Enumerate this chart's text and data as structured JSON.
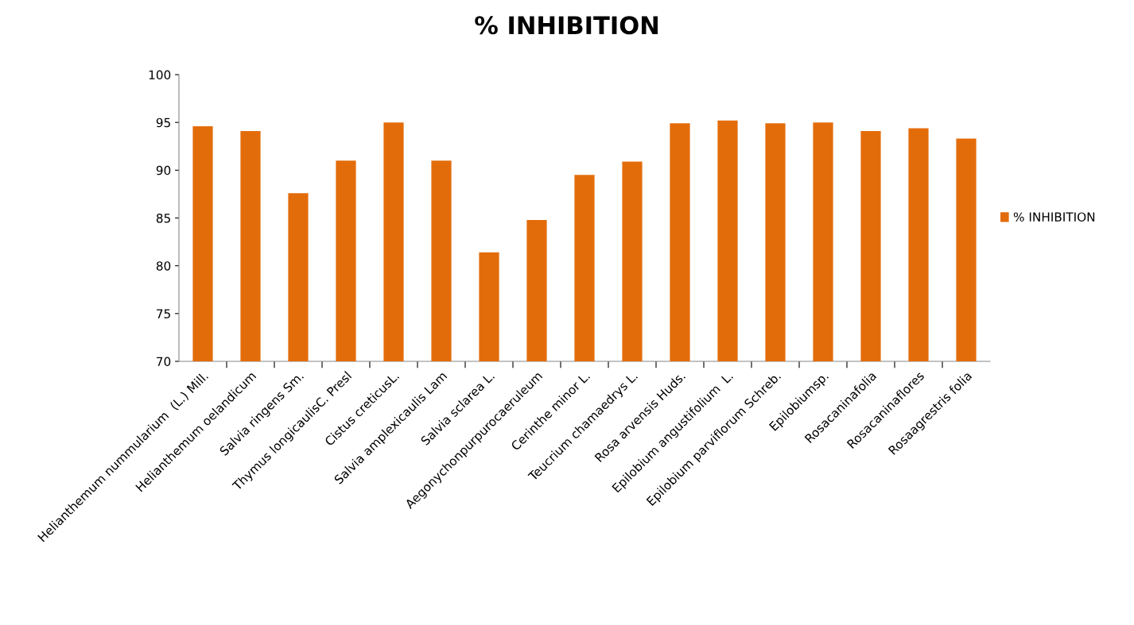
{
  "chart_data": {
    "type": "bar",
    "title": "% INHIBITION",
    "categories": [
      "Helianthemum nummularium  (L.) Mill.",
      "Helianthemum oelandicum",
      "Salvia ringens Sm.",
      "Thymus longicaulisC. Presl",
      "Cistus creticusL.",
      "Salvia amplexicaulis Lam",
      "Salvia sclarea L.",
      "Aegonychonpurpurocaeruleum",
      "Cerinthe minor L.",
      "Teucrium chamaedrys L.",
      "Rosa arvensis Huds.",
      "Epilobium angustifolium  L.",
      "Epilobium parviflorum Schreb.",
      "Epilobiumsp.",
      "Rosacaninafolia",
      "Rosacaninaflores",
      "Rosaagrestris folia"
    ],
    "series": [
      {
        "name": "% INHIBITION",
        "color": "#e36c0a",
        "values": [
          94.6,
          94.1,
          87.6,
          91.0,
          95.0,
          91.0,
          81.4,
          84.8,
          89.5,
          90.9,
          94.9,
          95.2,
          94.9,
          95.0,
          94.1,
          94.4,
          93.3
        ]
      }
    ],
    "ylim": [
      70,
      100
    ],
    "yticks": [
      70,
      75,
      80,
      85,
      90,
      95,
      100
    ],
    "grid": false,
    "legend": "right"
  }
}
